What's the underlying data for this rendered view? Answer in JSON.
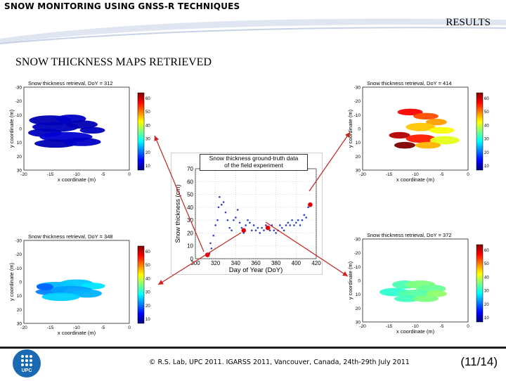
{
  "header": {
    "deck_title": "SNOW MONITORING USING GNSS-R TECHNIQUES",
    "section_label": "RESULTS",
    "subtitle": "SNOW THICKNESS MAPS RETRIEVED"
  },
  "plots": [
    {
      "title": "Snow thickness retrieval, DoY = 312",
      "xlabel": "x coordinate (m)",
      "ylabel": "y coordinate (m)",
      "xticks": [
        "-20",
        "-15",
        "-10",
        "-5",
        "0"
      ],
      "yticks": [
        "-30",
        "-20",
        "-10",
        "0",
        "10",
        "20",
        "30"
      ],
      "cbticks": [
        "60",
        "50",
        "40",
        "30",
        "20",
        "10"
      ]
    },
    {
      "title": "Snow thickness retrieval, DoY = 414",
      "xlabel": "x coordinate (m)",
      "ylabel": "y coordinate (m)",
      "xticks": [
        "-20",
        "-15",
        "-10",
        "-5",
        "0"
      ],
      "yticks": [
        "-30",
        "-20",
        "-10",
        "0",
        "10",
        "20",
        "30"
      ],
      "cbticks": [
        "60",
        "50",
        "40",
        "30",
        "20",
        "10"
      ]
    },
    {
      "title": "Snow thickness retrieval, DoY = 348",
      "xlabel": "x coordinate (m)",
      "ylabel": "y coordinate (m)",
      "xticks": [
        "-20",
        "-15",
        "-10",
        "-5",
        "0"
      ],
      "yticks": [
        "-30",
        "-20",
        "-10",
        "0",
        "10",
        "20",
        "30"
      ],
      "cbticks": [
        "60",
        "50",
        "40",
        "30",
        "20",
        "10"
      ]
    },
    {
      "title": "Snow thickness retrieval, DoY = 372",
      "xlabel": "x coordinate (m)",
      "ylabel": "y coordinate (m)",
      "xticks": [
        "-20",
        "-15",
        "-10",
        "-5",
        "0"
      ],
      "yticks": [
        "-30",
        "-20",
        "-10",
        "0",
        "10",
        "20",
        "30"
      ],
      "cbticks": [
        "60",
        "50",
        "40",
        "30",
        "20",
        "10"
      ]
    }
  ],
  "ground_truth": {
    "title_line1": "Snow thickness ground-truth data",
    "title_line2": "of the field experiment",
    "xlabel": "Day of Year (DoY)",
    "ylabel": "Snow thickness (cm)",
    "xticks": [
      "300",
      "320",
      "340",
      "360",
      "380",
      "400",
      "420"
    ],
    "yticks": [
      "0",
      "10",
      "20",
      "30",
      "40",
      "50",
      "60",
      "70"
    ]
  },
  "chart_data": {
    "type": "scatter",
    "title": "Snow thickness ground-truth data of the field experiment",
    "xlabel": "Day of Year (DoY)",
    "ylabel": "Snow thickness (cm)",
    "xlim": [
      300,
      420
    ],
    "ylim": [
      0,
      70
    ],
    "grid": true,
    "series": [
      {
        "values": [
          [
            312,
            2
          ],
          [
            314,
            4
          ],
          [
            315,
            12
          ],
          [
            316,
            8
          ],
          [
            318,
            18
          ],
          [
            320,
            26
          ],
          [
            322,
            30
          ],
          [
            323,
            40
          ],
          [
            324,
            48
          ],
          [
            326,
            42
          ],
          [
            328,
            44
          ],
          [
            330,
            36
          ],
          [
            332,
            30
          ],
          [
            334,
            24
          ],
          [
            336,
            22
          ],
          [
            338,
            30
          ],
          [
            340,
            32
          ],
          [
            342,
            38
          ],
          [
            344,
            28
          ],
          [
            346,
            24
          ],
          [
            348,
            20
          ],
          [
            350,
            26
          ],
          [
            352,
            30
          ],
          [
            354,
            28
          ],
          [
            356,
            22
          ],
          [
            358,
            26
          ],
          [
            360,
            22
          ],
          [
            362,
            24
          ],
          [
            364,
            20
          ],
          [
            366,
            24
          ],
          [
            368,
            22
          ],
          [
            370,
            26
          ],
          [
            372,
            24
          ],
          [
            374,
            22
          ],
          [
            376,
            26
          ],
          [
            378,
            22
          ],
          [
            380,
            20
          ],
          [
            382,
            22
          ],
          [
            384,
            26
          ],
          [
            386,
            24
          ],
          [
            388,
            22
          ],
          [
            390,
            26
          ],
          [
            392,
            28
          ],
          [
            394,
            26
          ],
          [
            396,
            30
          ],
          [
            398,
            26
          ],
          [
            400,
            28
          ],
          [
            402,
            30
          ],
          [
            404,
            26
          ],
          [
            406,
            30
          ],
          [
            408,
            34
          ],
          [
            410,
            32
          ],
          [
            412,
            40
          ],
          [
            414,
            42
          ]
        ]
      },
      {
        "name": "",
        "values": [
          [
            312,
            3
          ],
          [
            348,
            22
          ],
          [
            372,
            24
          ],
          [
            414,
            42
          ]
        ]
      }
    ]
  },
  "footer": {
    "credit": "© R.S. Lab, UPC 2011.  IGARSS 2011,  Vancouver, Canada, 24th-29th July 2011",
    "page": "(11/14)",
    "logo_label": "UPC"
  },
  "colors": {
    "accent_blue": "#1a6ab3",
    "marker_red": "#e60000",
    "arrow_red": "#d02020"
  }
}
